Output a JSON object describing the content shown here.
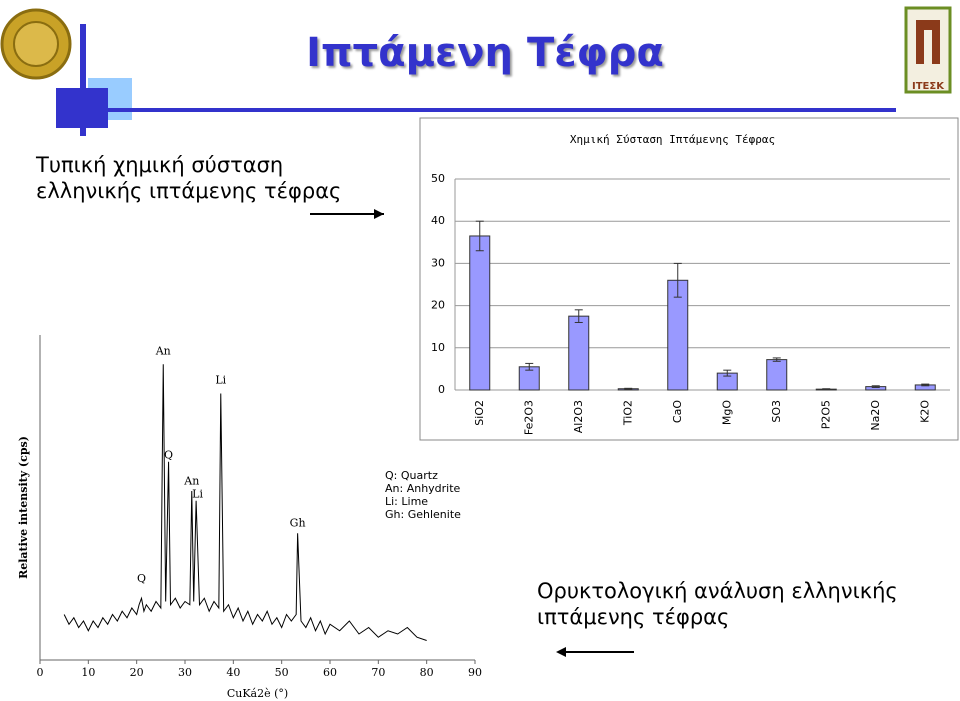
{
  "title": "Ιπτάμενη Τέφρα",
  "subtitle": "Τυπική χημική σύσταση ελληνικής ιπτάμενης τέφρας",
  "subtitle2": "Ορυκτολογική ανάλυση ελληνικής ιπτάμενης τέφρας",
  "logo_text": "ITEΣK",
  "chart_data": [
    {
      "type": "bar",
      "title": "Χημική Σύσταση Ιπτάμενης Τέφρας",
      "categories": [
        "SiO2",
        "Fe2O3",
        "Al2O3",
        "TiO2",
        "CaO",
        "MgO",
        "SO3",
        "P2O5",
        "Na2O",
        "K2O"
      ],
      "values": [
        36.5,
        5.5,
        17.5,
        0.3,
        26,
        4,
        7.2,
        0.2,
        0.8,
        1.2
      ],
      "errors": [
        3.5,
        0.8,
        1.5,
        0.1,
        4,
        0.7,
        0.4,
        0.1,
        0.2,
        0.2
      ],
      "color": "#9999ff",
      "ylim": [
        0,
        50
      ],
      "yticks": [
        0,
        10,
        20,
        30,
        40,
        50
      ],
      "grid": true
    },
    {
      "type": "line",
      "x_label": "CuKá2è (°)",
      "y_label": "Relative intensity (cps)",
      "color": "#000000",
      "x": [
        5,
        6,
        7,
        8,
        9,
        10,
        11,
        12,
        13,
        14,
        15,
        16,
        17,
        18,
        19,
        20,
        20.5,
        21,
        21.5,
        22,
        23,
        24,
        25,
        25.5,
        26,
        26.6,
        27,
        28,
        29,
        30,
        31,
        31.4,
        31.8,
        32.3,
        33,
        34,
        35,
        36,
        37,
        37.4,
        38,
        39,
        40,
        41,
        42,
        43,
        44,
        45,
        46,
        47,
        48,
        49,
        50,
        51,
        52,
        53,
        53.3,
        54,
        55,
        56,
        57,
        58,
        59,
        60,
        62,
        64,
        66,
        68,
        70,
        72,
        74,
        76,
        78,
        80
      ],
      "values": [
        14,
        11,
        13,
        10,
        12,
        9,
        12,
        10,
        13,
        11,
        14,
        12,
        15,
        13,
        16,
        14,
        17,
        19,
        15,
        17,
        15,
        18,
        16,
        91,
        18,
        61,
        17,
        19,
        16,
        18,
        17,
        52,
        18,
        49,
        17,
        19,
        15,
        18,
        16,
        82,
        15,
        17,
        13,
        16,
        12,
        15,
        11,
        14,
        12,
        15,
        11,
        13,
        10,
        14,
        12,
        14,
        39,
        12,
        10,
        13,
        9,
        12,
        8,
        11,
        9,
        12,
        8,
        10,
        7,
        9,
        8,
        10,
        7,
        6
      ],
      "xlim": [
        0,
        90
      ],
      "xticks": [
        0,
        10,
        20,
        30,
        40,
        50,
        60,
        70,
        80,
        90
      ],
      "ylim": [
        0,
        100
      ],
      "annotations": [
        {
          "text": "An",
          "x": 25.5,
          "y": 95
        },
        {
          "text": "Q",
          "x": 26.6,
          "y": 63
        },
        {
          "text": "An",
          "x": 31.4,
          "y": 55
        },
        {
          "text": "Li",
          "x": 32.6,
          "y": 51
        },
        {
          "text": "Li",
          "x": 37.4,
          "y": 86
        },
        {
          "text": "Gh",
          "x": 53.3,
          "y": 42
        },
        {
          "text": "Q",
          "x": 21,
          "y": 25
        }
      ],
      "notes": [
        "Q: Quartz",
        "An: Anhydrite",
        "Li: Lime",
        "Gh: Gehlenite"
      ]
    }
  ]
}
